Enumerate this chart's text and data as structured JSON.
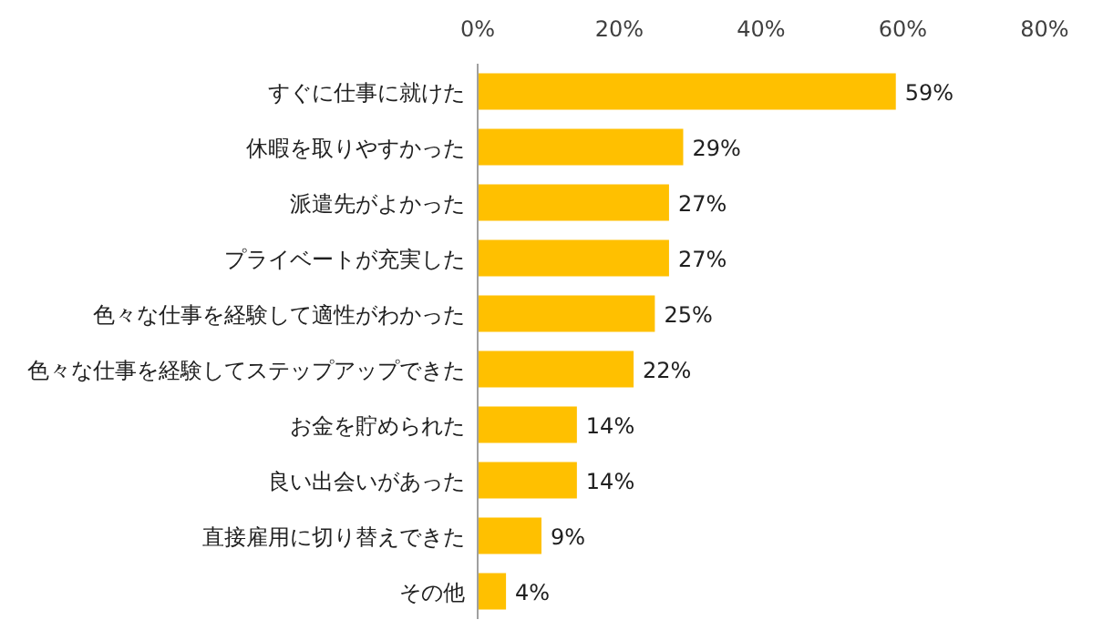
{
  "chart_data": {
    "type": "bar",
    "orientation": "horizontal",
    "categories": [
      "すぐに仕事に就けた",
      "休暇を取りやすかった",
      "派遣先がよかった",
      "プライベートが充実した",
      "色々な仕事を経験して適性がわかった",
      "色々な仕事を経験してステップアップできた",
      "お金を貯められた",
      "良い出会いがあった",
      "直接雇用に切り替えできた",
      "その他"
    ],
    "values": [
      59,
      29,
      27,
      27,
      25,
      22,
      14,
      14,
      9,
      4
    ],
    "value_labels": [
      "59%",
      "29%",
      "27%",
      "27%",
      "25%",
      "22%",
      "14%",
      "14%",
      "9%",
      "4%"
    ],
    "color": "#ffc000",
    "xlim": [
      0,
      80
    ],
    "xticks": [
      {
        "value": 0,
        "label": "0%"
      },
      {
        "value": 20,
        "label": "20%"
      },
      {
        "value": 40,
        "label": "40%"
      },
      {
        "value": 60,
        "label": "60%"
      },
      {
        "value": 80,
        "label": "80%"
      }
    ]
  }
}
